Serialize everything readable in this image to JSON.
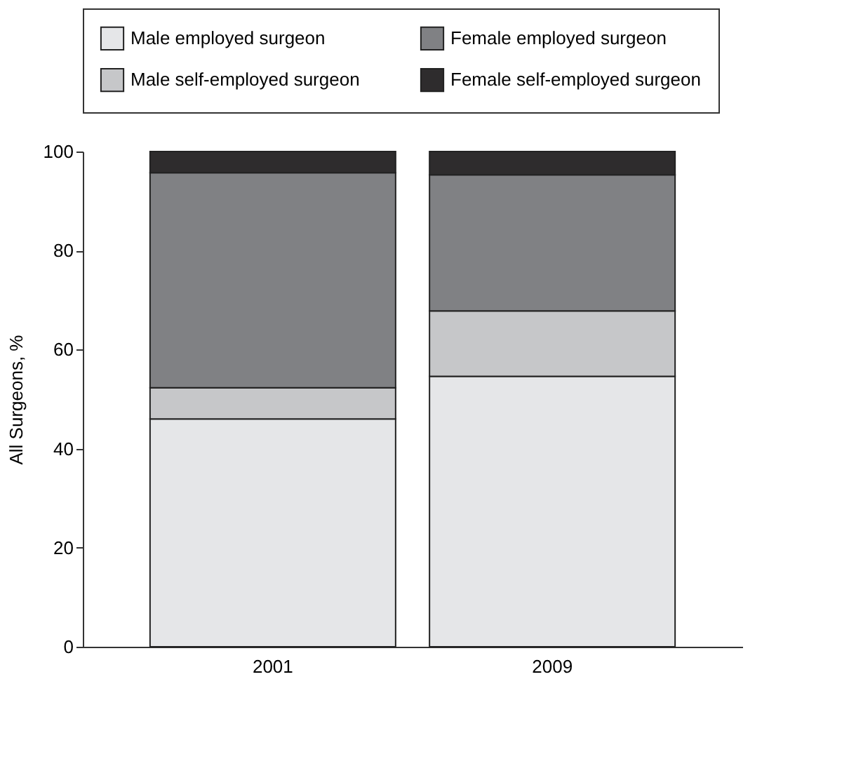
{
  "chart_data": {
    "type": "bar",
    "stacked": true,
    "ylabel": "All Surgeons, %",
    "categories": [
      "2001",
      "2009"
    ],
    "series": [
      {
        "name": "Male employed surgeon",
        "color": "#e5e6e8",
        "values": [
          46.0,
          54.6
        ]
      },
      {
        "name": "Male self-employed surgeon",
        "color": "#c6c7c9",
        "values": [
          6.3,
          13.2
        ]
      },
      {
        "name": "Female employed surgeon",
        "color": "#808184",
        "values": [
          43.4,
          27.5
        ]
      },
      {
        "name": "Female self-employed surgeon",
        "color": "#2e2c2d",
        "values": [
          4.3,
          4.7
        ]
      }
    ],
    "ylim": [
      0,
      100
    ],
    "yticks": [
      0,
      20,
      40,
      60,
      80,
      100
    ],
    "grid": false,
    "legend": "top"
  }
}
